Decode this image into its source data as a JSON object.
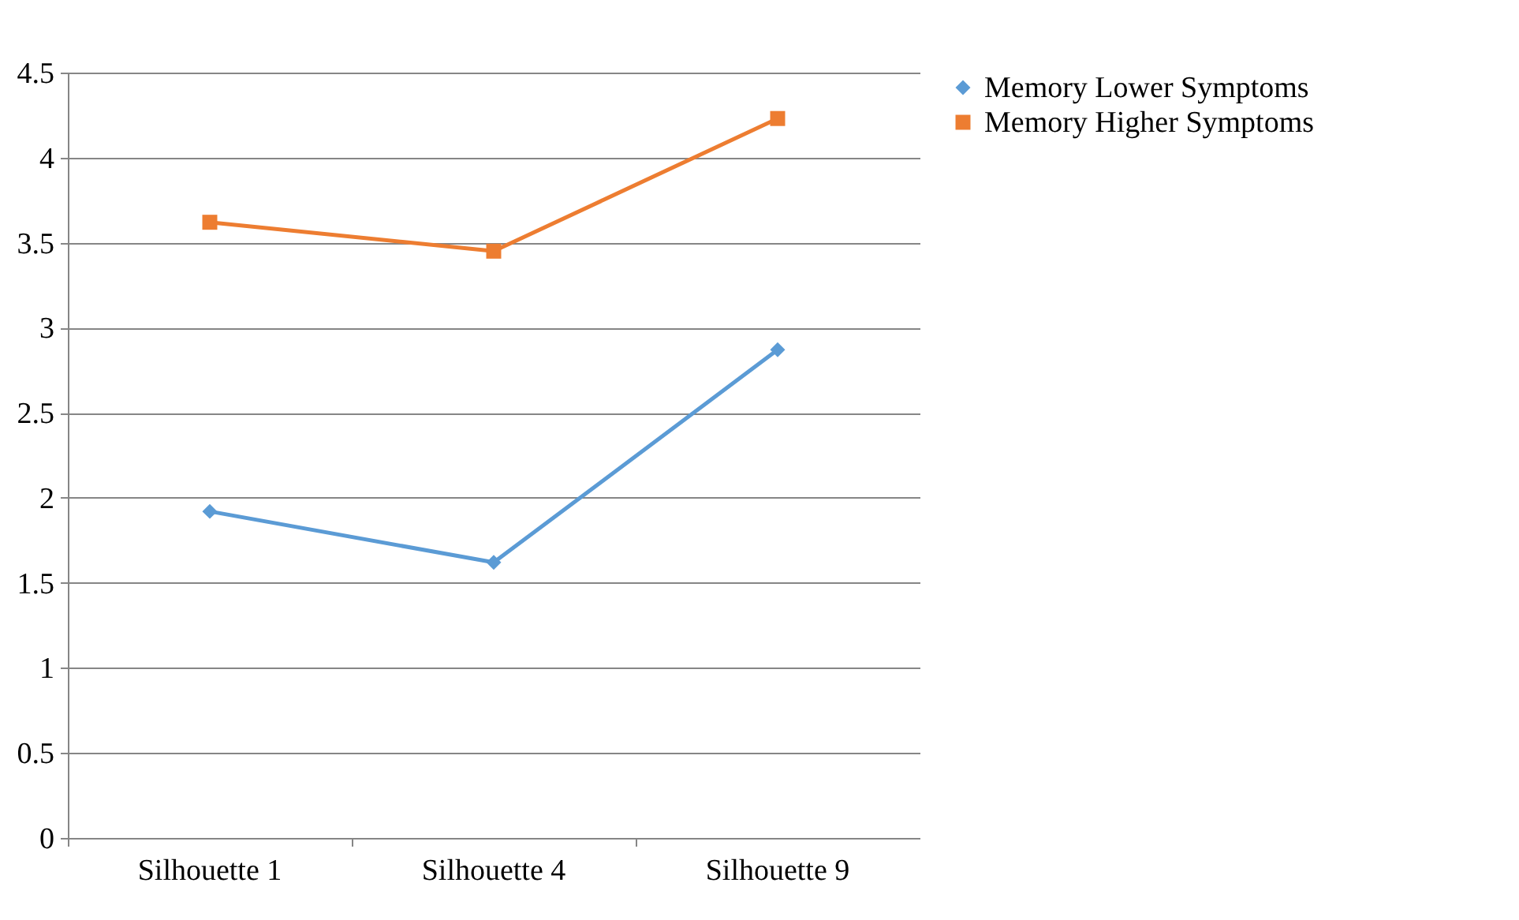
{
  "chart_data": {
    "type": "line",
    "categories": [
      "Silhouette 1",
      "Silhouette 4",
      "Silhouette 9"
    ],
    "series": [
      {
        "name": "Memory Lower Symptoms",
        "color": "#5b9bd5",
        "marker": "diamond",
        "values": [
          1.92,
          1.62,
          2.87
        ]
      },
      {
        "name": "Memory Higher Symptoms",
        "color": "#ed7d31",
        "marker": "square",
        "values": [
          3.62,
          3.45,
          4.23
        ]
      }
    ],
    "ylim": [
      0,
      4.5
    ],
    "yticks": [
      {
        "value": 0,
        "label": "0"
      },
      0.5,
      {
        "value": 1,
        "label": "1"
      },
      1.5,
      {
        "value": 2,
        "label": "2"
      },
      2.5,
      {
        "value": 3,
        "label": "3"
      },
      3.5,
      {
        "value": 4,
        "label": "4"
      },
      4.5
    ],
    "grid": "y",
    "legend": "right",
    "line_style": "solid"
  }
}
